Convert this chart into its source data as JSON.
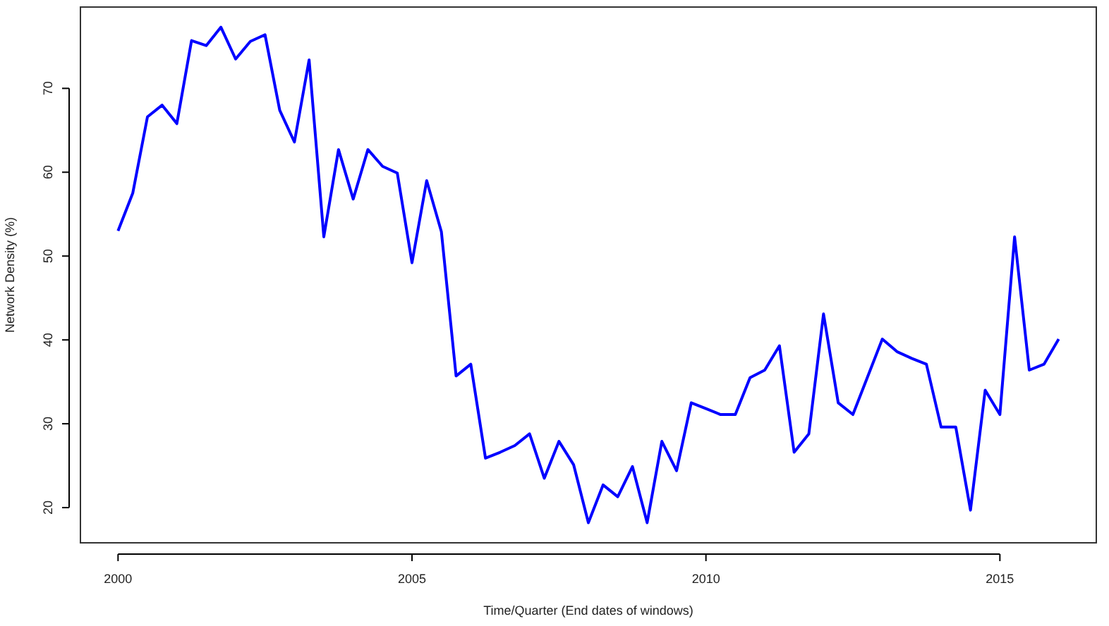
{
  "chart_data": {
    "type": "line",
    "xlabel": "Time/Quarter (End dates of windows)",
    "ylabel": "Network Density (%)",
    "x": [
      2000,
      2000.25,
      2000.5,
      2000.75,
      2001,
      2001.25,
      2001.5,
      2001.75,
      2002,
      2002.25,
      2002.5,
      2002.75,
      2003,
      2003.25,
      2003.5,
      2003.75,
      2004,
      2004.25,
      2004.5,
      2004.75,
      2005,
      2005.25,
      2005.5,
      2005.75,
      2006,
      2006.25,
      2006.5,
      2006.75,
      2007,
      2007.25,
      2007.5,
      2007.75,
      2008,
      2008.25,
      2008.5,
      2008.75,
      2009,
      2009.25,
      2009.5,
      2009.75,
      2010,
      2010.25,
      2010.5,
      2010.75,
      2011,
      2011.25,
      2011.5,
      2011.75,
      2012,
      2012.25,
      2012.5,
      2012.75,
      2013,
      2013.25,
      2013.5,
      2013.75,
      2014,
      2014.25,
      2014.5,
      2014.75,
      2015,
      2015.25,
      2015.5,
      2015.75,
      2016
    ],
    "series": [
      {
        "color": "#0000ff",
        "values": [
          53.0,
          57.5,
          66.6,
          68.0,
          65.8,
          75.7,
          75.1,
          77.3,
          73.5,
          75.6,
          76.4,
          67.4,
          63.6,
          73.4,
          52.3,
          62.7,
          56.8,
          62.7,
          60.7,
          59.9,
          49.2,
          59.0,
          52.9,
          35.7,
          37.1,
          25.9,
          26.6,
          27.4,
          28.8,
          23.5,
          27.9,
          25.1,
          18.2,
          22.7,
          21.3,
          24.9,
          18.2,
          27.9,
          24.4,
          32.5,
          31.8,
          31.1,
          31.1,
          35.5,
          36.4,
          39.3,
          26.6,
          28.8,
          43.1,
          32.5,
          31.1,
          35.6,
          40.1,
          38.6,
          37.8,
          37.1,
          29.6,
          29.6,
          19.7,
          34.0,
          31.1,
          52.3,
          36.4,
          37.1,
          40.1
        ]
      }
    ],
    "xlim": [
      1999.36,
      2016.64
    ],
    "ylim": [
      15.8,
      79.7
    ],
    "xticks": [
      2000,
      2005,
      2010,
      2015
    ],
    "yticks": [
      20,
      30,
      40,
      50,
      60,
      70
    ],
    "grid": false,
    "marker": "none",
    "line_style": "solid"
  }
}
